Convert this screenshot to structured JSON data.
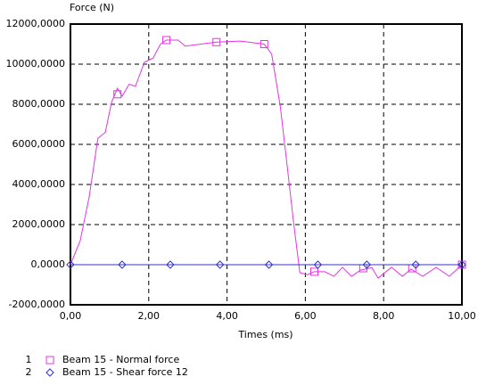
{
  "chart_data": {
    "type": "line",
    "y_label": "Force (N)",
    "x_label": "Times (ms)",
    "xlim": [
      0,
      10
    ],
    "ylim": [
      -2000,
      12000
    ],
    "xticks": [
      {
        "value": 0,
        "label": "0,00"
      },
      {
        "value": 2,
        "label": "2,00"
      },
      {
        "value": 4,
        "label": "4,00"
      },
      {
        "value": 6,
        "label": "6,00"
      },
      {
        "value": 8,
        "label": "8,00"
      },
      {
        "value": 10,
        "label": "10,00"
      }
    ],
    "yticks": [
      {
        "value": -2000,
        "label": "-2000,0000"
      },
      {
        "value": 0,
        "label": "0,0000"
      },
      {
        "value": 2000,
        "label": "2000,0000"
      },
      {
        "value": 4000,
        "label": "4000,0000"
      },
      {
        "value": 6000,
        "label": "6000,0000"
      },
      {
        "value": 8000,
        "label": "8000,0000"
      },
      {
        "value": 10000,
        "label": "10000,0000"
      },
      {
        "value": 12000,
        "label": "12000,0000"
      }
    ],
    "grid": true,
    "series": [
      {
        "number": 1,
        "name": "Beam 15 - Normal force",
        "color": "#e633e6",
        "marker": "square",
        "x": [
          0,
          0.25,
          0.48,
          0.7,
          0.89,
          1.05,
          1.2,
          1.32,
          1.5,
          1.66,
          1.89,
          2.11,
          2.3,
          2.45,
          2.75,
          2.93,
          3.73,
          4.34,
          4.95,
          5.14,
          5.36,
          5.52,
          5.7,
          5.86,
          6.05,
          6.23,
          6.5,
          6.73,
          6.95,
          7.18,
          7.41,
          7.7,
          7.86,
          8.2,
          8.48,
          8.7,
          9.0,
          9.34,
          9.68,
          10
        ],
        "values": [
          0,
          1200,
          3400,
          6300,
          6600,
          8100,
          8800,
          8400,
          9000,
          8900,
          10100,
          10300,
          11000,
          11200,
          11200,
          10900,
          11100,
          11150,
          11000,
          10500,
          7900,
          5200,
          2100,
          -400,
          -500,
          -350,
          -350,
          -580,
          -130,
          -580,
          -270,
          -150,
          -670,
          -130,
          -580,
          -220,
          -580,
          -130,
          -580,
          0
        ],
        "marker_x": [
          1.2,
          2.45,
          3.73,
          4.95,
          6.23,
          7.48,
          8.73,
          10
        ],
        "marker_values": [
          8500,
          11200,
          11100,
          11000,
          -350,
          -180,
          -180,
          0
        ]
      },
      {
        "number": 2,
        "name": "Beam 15 - Shear force 12",
        "color": "#3333cc",
        "marker": "diamond",
        "x": [
          0,
          10
        ],
        "values": [
          0,
          0
        ],
        "marker_x": [
          0,
          1.32,
          2.55,
          3.82,
          5.07,
          6.32,
          7.57,
          8.82,
          10
        ],
        "marker_values": [
          0,
          0,
          0,
          0,
          0,
          0,
          0,
          0,
          0
        ]
      }
    ]
  }
}
